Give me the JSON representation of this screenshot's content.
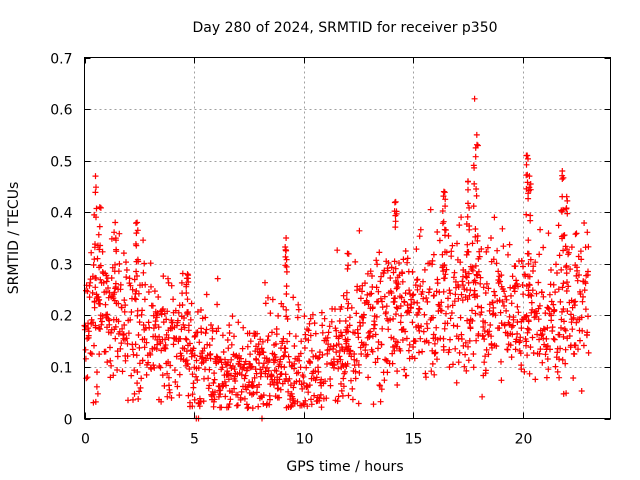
{
  "chart_data": {
    "type": "scatter",
    "title": "Day 280 of 2024, SRMTID for receiver p350",
    "xlabel": "GPS time / hours",
    "ylabel": "SRMTID / TECUs",
    "xlim": [
      0,
      24
    ],
    "ylim": [
      0,
      0.7
    ],
    "xticks": [
      0,
      5,
      10,
      15,
      20
    ],
    "xtick_labels": [
      "0",
      "5",
      "10",
      "15",
      "20"
    ],
    "yticks": [
      0,
      0.1,
      0.2,
      0.3,
      0.4,
      0.5,
      0.6,
      0.7
    ],
    "ytick_labels": [
      "0",
      "0.1",
      "0.2",
      "0.3",
      "0.4",
      "0.5",
      "0.6",
      "0.7"
    ],
    "grid": true,
    "marker": "+",
    "color": "#ff0000",
    "x_data_end": 23.0,
    "series": [
      {
        "name": "SRMTID",
        "baseline": [
          [
            0.0,
            0.19
          ],
          [
            1.0,
            0.19
          ],
          [
            2.0,
            0.19
          ],
          [
            3.0,
            0.17
          ],
          [
            4.0,
            0.15
          ],
          [
            5.0,
            0.11
          ],
          [
            6.0,
            0.09
          ],
          [
            7.0,
            0.09
          ],
          [
            8.0,
            0.1
          ],
          [
            9.0,
            0.11
          ],
          [
            10.0,
            0.1
          ],
          [
            11.0,
            0.1
          ],
          [
            12.0,
            0.13
          ],
          [
            13.0,
            0.18
          ],
          [
            14.0,
            0.2
          ],
          [
            15.0,
            0.2
          ],
          [
            16.0,
            0.21
          ],
          [
            17.0,
            0.24
          ],
          [
            18.0,
            0.21
          ],
          [
            19.0,
            0.22
          ],
          [
            20.0,
            0.2
          ],
          [
            21.0,
            0.18
          ],
          [
            22.0,
            0.2
          ],
          [
            23.0,
            0.22
          ]
        ],
        "spikes": [
          [
            0.5,
            0.47
          ],
          [
            0.7,
            0.41
          ],
          [
            1.4,
            0.38
          ],
          [
            2.4,
            0.38
          ],
          [
            4.7,
            0.28
          ],
          [
            9.2,
            0.35
          ],
          [
            12.0,
            0.32
          ],
          [
            14.2,
            0.42
          ],
          [
            16.4,
            0.44
          ],
          [
            17.5,
            0.46
          ],
          [
            17.8,
            0.62
          ],
          [
            17.9,
            0.55
          ],
          [
            20.2,
            0.51
          ],
          [
            20.3,
            0.47
          ],
          [
            21.8,
            0.48
          ],
          [
            22.0,
            0.43
          ]
        ],
        "zeros": [
          5.1,
          5.2,
          8.1
        ]
      }
    ]
  }
}
